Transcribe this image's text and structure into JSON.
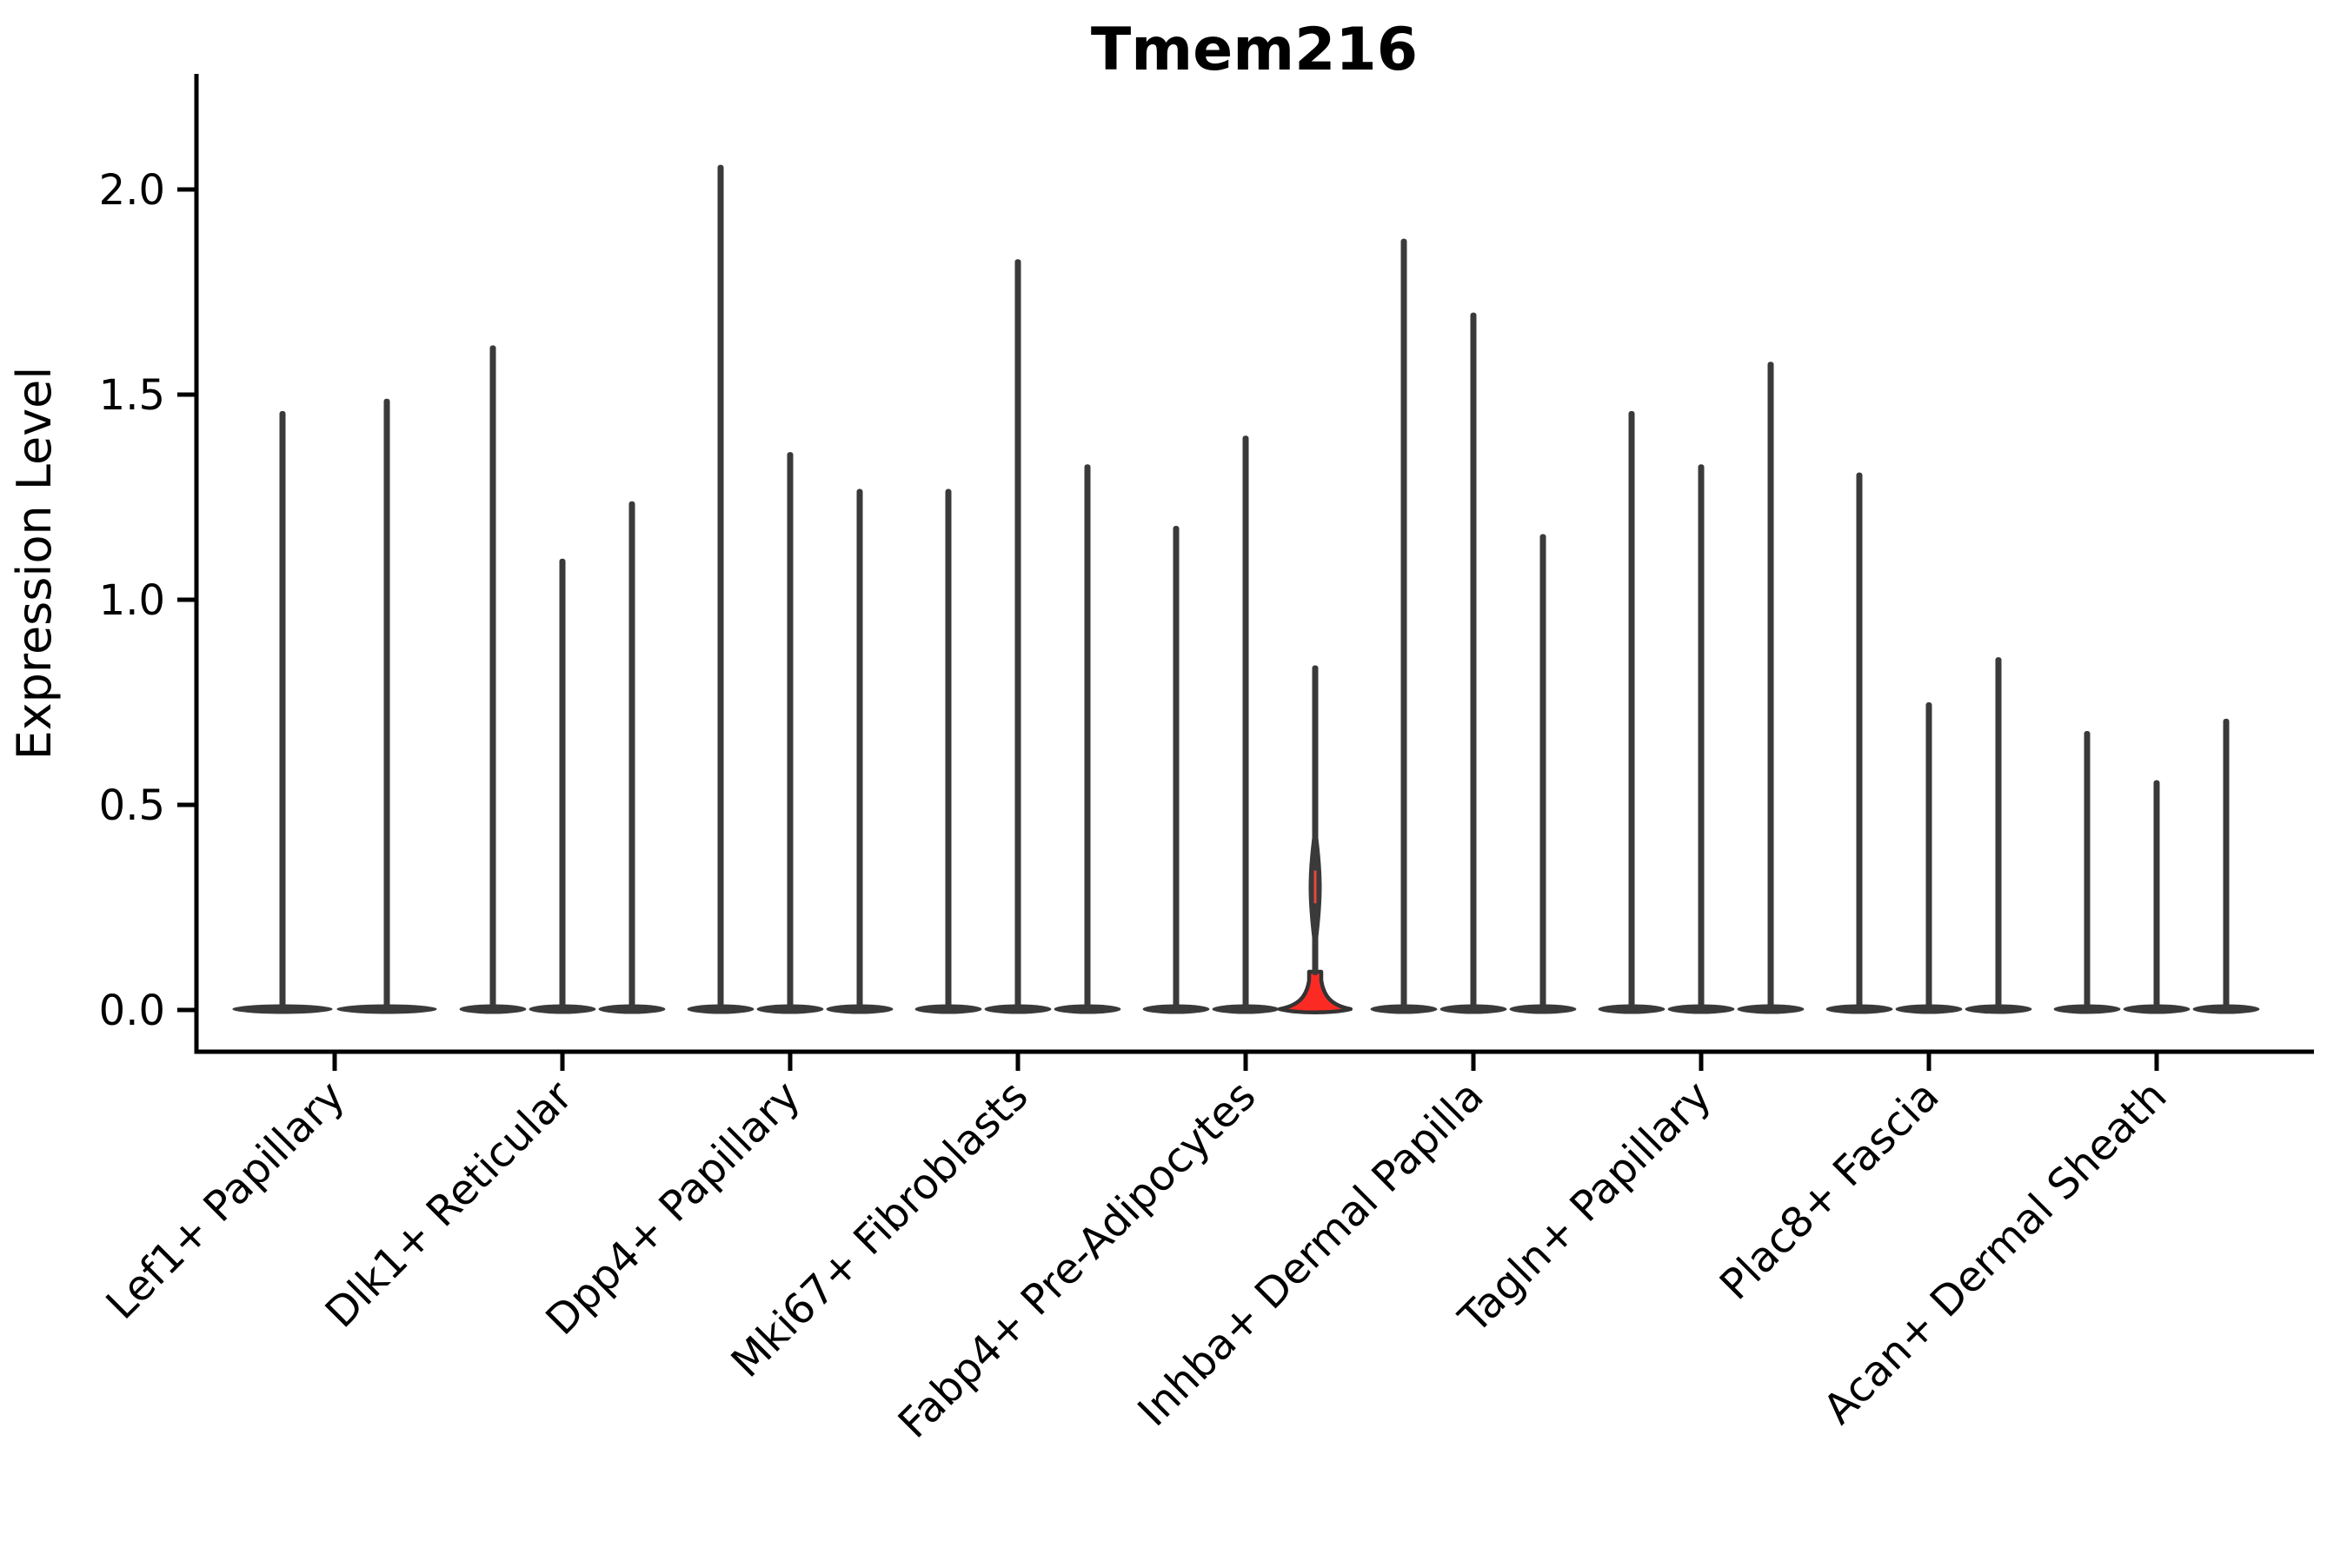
{
  "chart_data": {
    "type": "violin",
    "title": "Tmem216",
    "ylabel": "Expression Level",
    "xlabel": "",
    "ylim": [
      -0.1,
      2.28
    ],
    "yticks": [
      0.0,
      0.5,
      1.0,
      1.5,
      2.0
    ],
    "ytick_labels": [
      "0.0",
      "0.5",
      "1.0",
      "1.5",
      "2.0"
    ],
    "grid": false,
    "legend": "none",
    "violin_color": "#3a3a3a",
    "highlight_fill": "#fb2b24",
    "axis_color": "#000000",
    "groups": [
      {
        "label": "Lef1+ Papillary",
        "violin_max_expression": [
          1.46,
          1.49
        ]
      },
      {
        "label": "Dlk1+ Reticular",
        "violin_max_expression": [
          1.62,
          1.1,
          1.24
        ]
      },
      {
        "label": "Dpp4+ Papillary",
        "violin_max_expression": [
          2.06,
          1.36,
          1.27
        ]
      },
      {
        "label": "Mki67+ Fibroblasts",
        "violin_max_expression": [
          1.27,
          1.83,
          1.33
        ]
      },
      {
        "label": "Fabp4+ Pre-Adipocytes",
        "violin_max_expression": [
          1.18,
          1.4,
          0.84
        ],
        "highlighted_violin_index": 2
      },
      {
        "label": "Inhba+ Dermal Papilla",
        "violin_max_expression": [
          1.88,
          1.7,
          1.16
        ]
      },
      {
        "label": "Tagln+ Papillary",
        "violin_max_expression": [
          1.46,
          1.33,
          1.58
        ]
      },
      {
        "label": "Plac8+ Fascia",
        "violin_max_expression": [
          1.31,
          0.75,
          0.86
        ]
      },
      {
        "label": "Acan+ Dermal Sheath",
        "violin_max_expression": [
          0.68,
          0.56,
          0.71
        ]
      }
    ]
  }
}
